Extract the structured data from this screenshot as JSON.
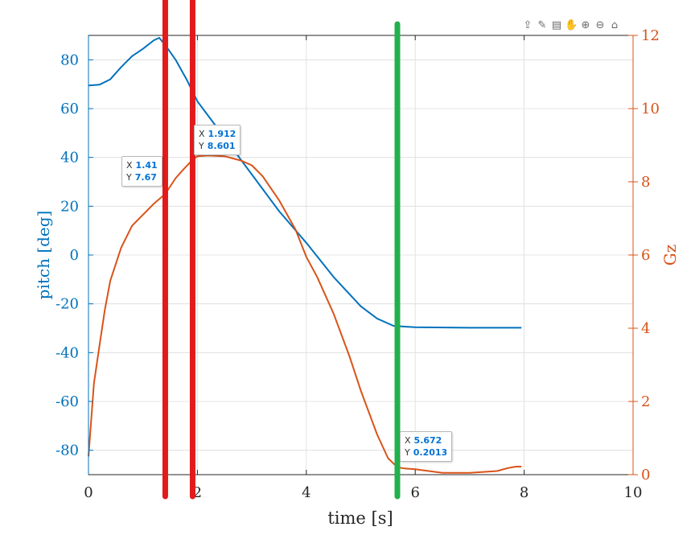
{
  "toolbar": {
    "icons": [
      "export-icon",
      "brush-icon",
      "datatip-icon",
      "pan-icon",
      "zoom-in-icon",
      "zoom-out-icon",
      "home-icon"
    ]
  },
  "colors": {
    "left": "#0072bd",
    "right": "#d95319",
    "red_marker": "#e31a1c",
    "green_marker": "#22b14c"
  },
  "chart_data": {
    "type": "line",
    "xlabel": "time [s]",
    "ylabel_left": "pitch [deg]",
    "ylabel_right": "Gz",
    "xlim": [
      0,
      10
    ],
    "ylim_left": [
      -90,
      90
    ],
    "ylim_right": [
      0,
      12
    ],
    "xticks": [
      "0",
      "2",
      "4",
      "6",
      "8",
      "10"
    ],
    "yticks_left": [
      "80",
      "60",
      "40",
      "20",
      "0",
      "-20",
      "-40",
      "-60",
      "-80"
    ],
    "yticks_right": [
      "12",
      "10",
      "8",
      "6",
      "4",
      "2",
      "0"
    ],
    "grid": true,
    "series": [
      {
        "axis": "left",
        "color": "#0072bd",
        "x": [
          0,
          0.2,
          0.4,
          0.6,
          0.8,
          1.0,
          1.2,
          1.3,
          1.41,
          1.6,
          1.8,
          2.0,
          2.5,
          3.0,
          3.5,
          4.0,
          4.5,
          5.0,
          5.3,
          5.6,
          6.0,
          7.0,
          7.95
        ],
        "y": [
          69.5,
          69.8,
          72,
          77,
          81.5,
          84.5,
          88,
          89,
          86,
          80,
          72,
          63,
          48,
          33,
          18,
          5,
          -9,
          -21,
          -26,
          -29,
          -29.6,
          -29.8,
          -29.8
        ]
      },
      {
        "axis": "right",
        "color": "#d95319",
        "x": [
          0,
          0.1,
          0.2,
          0.3,
          0.4,
          0.6,
          0.8,
          1.0,
          1.2,
          1.41,
          1.6,
          1.75,
          1.912,
          2.0,
          2.2,
          2.5,
          2.8,
          3.0,
          3.2,
          3.5,
          3.8,
          4.0,
          4.2,
          4.5,
          4.8,
          5.0,
          5.3,
          5.5,
          5.672,
          5.8,
          6.0,
          6.5,
          7.0,
          7.5,
          7.7,
          7.85,
          7.95
        ],
        "y": [
          0.5,
          2.5,
          3.5,
          4.5,
          5.3,
          6.2,
          6.8,
          7.1,
          7.4,
          7.67,
          8.1,
          8.35,
          8.601,
          8.7,
          8.72,
          8.7,
          8.58,
          8.45,
          8.15,
          7.5,
          6.7,
          5.95,
          5.4,
          4.4,
          3.2,
          2.3,
          1.1,
          0.45,
          0.2013,
          0.17,
          0.15,
          0.05,
          0.05,
          0.1,
          0.18,
          0.22,
          0.22
        ]
      }
    ],
    "markers": [
      {
        "x": 1.41,
        "color": "#e31a1c",
        "label_x": "1.41",
        "label_y": "7.67"
      },
      {
        "x": 1.912,
        "color": "#e31a1c",
        "label_x": "1.912",
        "label_y": "8.601"
      },
      {
        "x": 5.672,
        "color": "#22b14c",
        "label_x": "5.672",
        "label_y": "0.2013"
      }
    ]
  }
}
